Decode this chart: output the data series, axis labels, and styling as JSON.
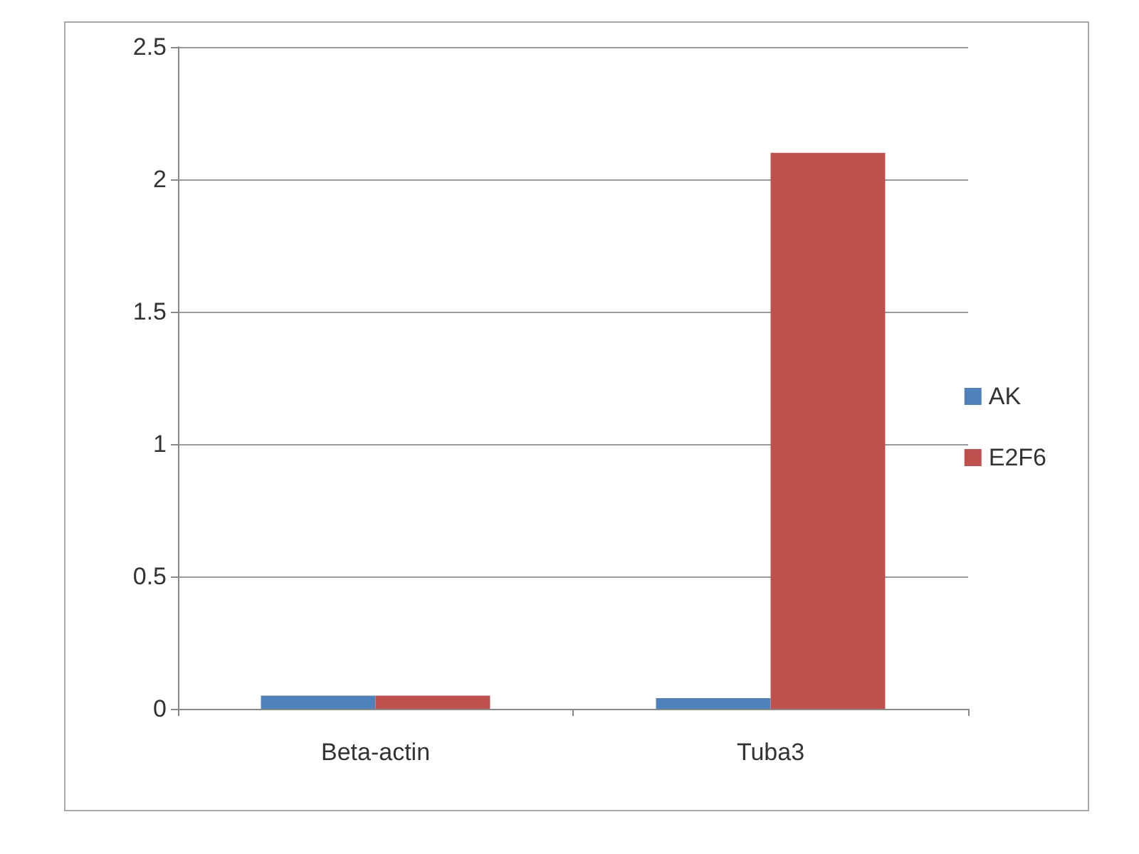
{
  "chart_data": {
    "type": "bar",
    "categories": [
      "Beta-actin",
      "Tuba3"
    ],
    "series": [
      {
        "name": "AK",
        "color": "#4f81bd",
        "values": [
          0.05,
          0.04
        ]
      },
      {
        "name": "E2F6",
        "color": "#c0504d",
        "values": [
          0.05,
          2.1
        ]
      }
    ],
    "ylim": [
      0,
      2.5
    ],
    "yticks": [
      0,
      0.5,
      1,
      1.5,
      2,
      2.5
    ],
    "grid": "y",
    "legend": "right"
  }
}
